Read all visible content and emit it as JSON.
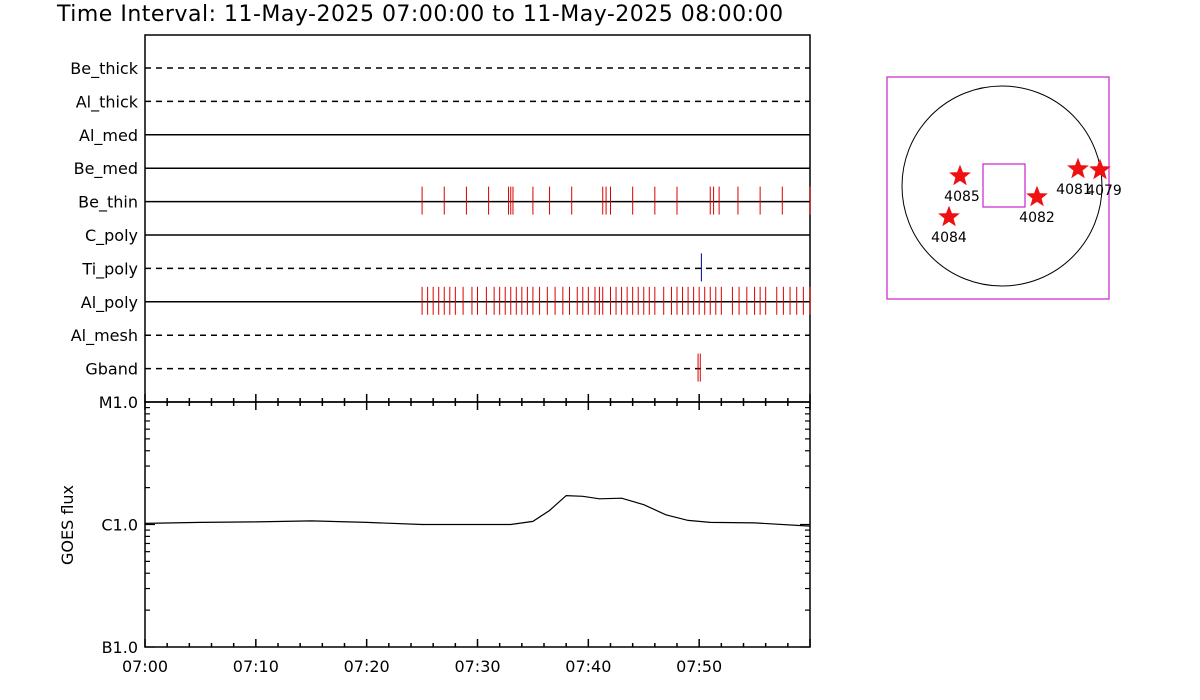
{
  "title": "Time Interval: 11-May-2025 07:00:00 to 11-May-2025 08:00:00",
  "chart_data": [
    {
      "type": "timeline",
      "time_range": [
        "07:00",
        "08:00"
      ],
      "rows": [
        {
          "name": "Be_thick",
          "line": "dashed",
          "events": [],
          "event_color": "#dd0000"
        },
        {
          "name": "Al_thick",
          "line": "dashed",
          "events": [],
          "event_color": "#dd0000"
        },
        {
          "name": "Al_med",
          "line": "solid",
          "events": [],
          "event_color": "#dd0000"
        },
        {
          "name": "Be_med",
          "line": "solid",
          "events": [],
          "event_color": "#dd0000"
        },
        {
          "name": "Be_thin",
          "line": "solid",
          "event_color": "#dd0000",
          "events": [
            25.0,
            27.0,
            29.0,
            31.0,
            32.8,
            33.0,
            33.2,
            35.0,
            36.5,
            38.5,
            41.3,
            41.6,
            42.0,
            44.0,
            46.0,
            48.0,
            51.0,
            51.3,
            51.8,
            53.5,
            55.5,
            57.5,
            60.0
          ]
        },
        {
          "name": "C_poly",
          "line": "solid",
          "events": [],
          "event_color": "#dd0000"
        },
        {
          "name": "Ti_poly",
          "line": "dashed",
          "event_color": "#000088",
          "events": [
            50.2
          ]
        },
        {
          "name": "Al_poly",
          "line": "solid",
          "event_color": "#dd0000",
          "events": [
            25.0,
            25.5,
            26.0,
            26.5,
            27.0,
            27.5,
            28.0,
            28.7,
            29.5,
            30.0,
            30.8,
            31.5,
            32.0,
            32.5,
            33.0,
            33.5,
            34.0,
            34.5,
            35.0,
            35.6,
            36.3,
            37.0,
            37.7,
            38.3,
            39.0,
            39.5,
            40.0,
            40.6,
            41.0,
            41.3,
            42.0,
            42.5,
            43.0,
            43.5,
            44.0,
            44.5,
            45.0,
            45.5,
            46.0,
            46.8,
            47.5,
            48.0,
            48.5,
            49.0,
            49.5,
            50.0,
            50.5,
            51.0,
            51.5,
            52.0,
            53.0,
            53.6,
            54.3,
            55.0,
            55.5,
            56.0,
            57.0,
            57.6,
            58.2,
            58.8,
            59.4,
            60.0
          ]
        },
        {
          "name": "Al_mesh",
          "line": "dashed",
          "events": [],
          "event_color": "#dd0000"
        },
        {
          "name": "Gband",
          "line": "dashed",
          "event_color": "#dd0000",
          "events": [
            49.9,
            50.1
          ]
        }
      ],
      "x_ticks": [
        "07:00",
        "07:10",
        "07:20",
        "07:30",
        "07:40",
        "07:50"
      ]
    },
    {
      "type": "line",
      "ylabel": "GOES flux",
      "y_scale": "log",
      "y_ticks": [
        "M1.0",
        "C1.0",
        "B1.0"
      ],
      "y_tick_values": [
        1e-05,
        1e-06,
        1e-07
      ],
      "ylim": [
        1e-07,
        1e-05
      ],
      "x_ticks": [
        "07:00",
        "07:10",
        "07:20",
        "07:30",
        "07:40",
        "07:50"
      ],
      "xlim_minutes": [
        0,
        60
      ],
      "series": [
        {
          "color": "#000000",
          "points": [
            [
              0,
              1.02e-06
            ],
            [
              5,
              1.04e-06
            ],
            [
              10,
              1.05e-06
            ],
            [
              15,
              1.07e-06
            ],
            [
              20,
              1.04e-06
            ],
            [
              25,
              1e-06
            ],
            [
              30,
              1e-06
            ],
            [
              33,
              1e-06
            ],
            [
              35,
              1.06e-06
            ],
            [
              36.5,
              1.3e-06
            ],
            [
              38,
              1.72e-06
            ],
            [
              39.5,
              1.7e-06
            ],
            [
              41,
              1.62e-06
            ],
            [
              43,
              1.64e-06
            ],
            [
              45,
              1.45e-06
            ],
            [
              47,
              1.2e-06
            ],
            [
              49,
              1.08e-06
            ],
            [
              51,
              1.04e-06
            ],
            [
              55,
              1.03e-06
            ],
            [
              60,
              9.7e-07
            ]
          ]
        }
      ]
    },
    {
      "type": "sun_map",
      "frame_color": "#cc22cc",
      "marker_color": "#ee1111",
      "regions": [
        {
          "label": "4085"
        },
        {
          "label": "4084"
        },
        {
          "label": "4082"
        },
        {
          "label": "4081"
        },
        {
          "label": "4079"
        }
      ]
    }
  ]
}
